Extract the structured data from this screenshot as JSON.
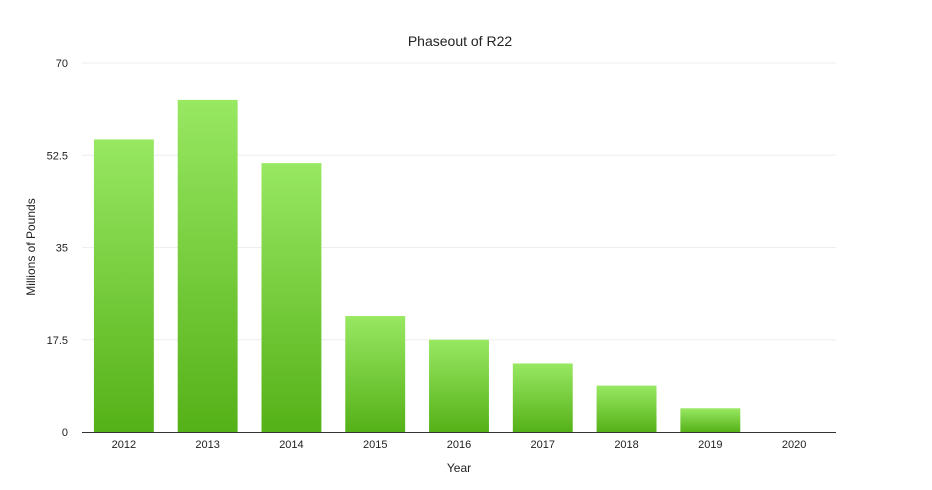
{
  "chart_data": {
    "type": "bar",
    "title": "Phaseout of R22",
    "xlabel": "Year",
    "ylabel": "Millions of Pounds",
    "categories": [
      "2012",
      "2013",
      "2014",
      "2015",
      "2016",
      "2017",
      "2018",
      "2019",
      "2020"
    ],
    "values": [
      55.5,
      63,
      51,
      22,
      17.5,
      13,
      8.8,
      4.5,
      0
    ],
    "yticks": [
      "0",
      "17.5",
      "35",
      "52.5",
      "70"
    ],
    "ylim": [
      0,
      70
    ],
    "grid": true,
    "legend": "none",
    "colors": {
      "bar_top": "#98e862",
      "bar_bottom": "#55b118"
    }
  }
}
